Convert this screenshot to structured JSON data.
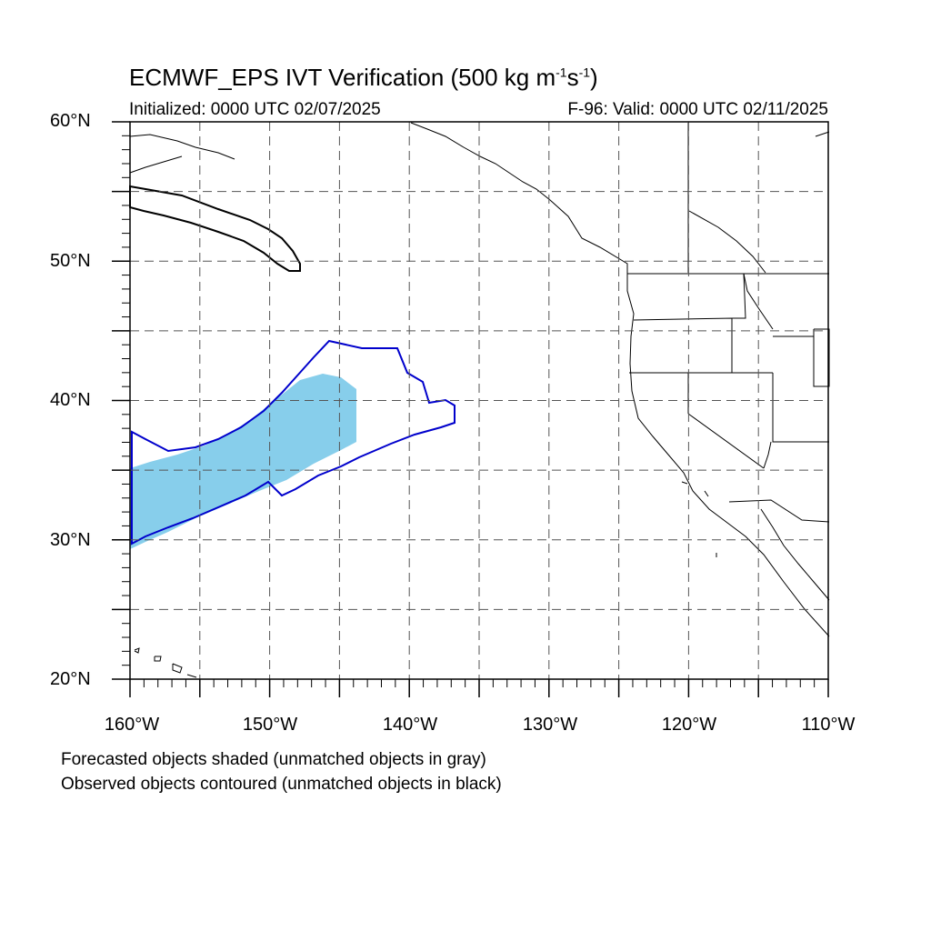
{
  "title": {
    "prefix": "ECMWF_EPS IVT Verification (500 kg m",
    "sup1": "-1",
    "mid": "s",
    "sup2": "-1",
    "suffix": ")"
  },
  "subtitle_left": "Initialized: 0000 UTC 02/07/2025",
  "subtitle_right": "F-96: Valid: 0000 UTC 02/11/2025",
  "lat_labels": [
    "60°N",
    "50°N",
    "40°N",
    "30°N",
    "20°N"
  ],
  "lon_labels": [
    "160°W",
    "150°W",
    "140°W",
    "130°W",
    "120°W",
    "110°W"
  ],
  "notes": [
    "Forecasted objects shaded (unmatched objects in gray)",
    "Observed objects contoured (unmatched objects in black)"
  ],
  "colors": {
    "forecast_matched": "#87ceeb",
    "observed_matched": "#0000cc",
    "observed_unmatched": "#000000",
    "grid": "#555555"
  },
  "map_extent": {
    "lon_min": -160,
    "lon_max": -110,
    "lat_min": 20,
    "lat_max": 60
  }
}
